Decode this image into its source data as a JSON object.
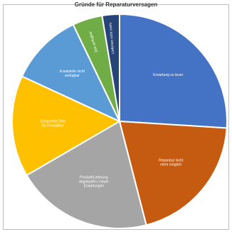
{
  "chart_data": {
    "type": "pie",
    "title": "Gründe für Reparaturversagen",
    "slices": [
      {
        "label": "Erwartung zu teuer",
        "value": 26.0,
        "color": "#4472c4"
      },
      {
        "label": "Reparatur nicht mehr möglich",
        "value": 20.0,
        "color": "#c55a11"
      },
      {
        "label": "Produkt/Lieferung abgelaufen / neuer Erwartungen",
        "value": 20.6,
        "color": "#a5a5a5"
      },
      {
        "label": "Ersatzteile/Teile für Produktion",
        "value": 15.3,
        "color": "#ffc000"
      },
      {
        "label": "Ersatzteile nicht verfügbar",
        "value": 11.0,
        "color": "#5b9bd5"
      },
      {
        "label": "Zeit verfügbar",
        "value": 4.5,
        "color": "#70ad47"
      },
      {
        "label": "Lieferant nicht mehr",
        "value": 2.6,
        "color": "#264478"
      }
    ],
    "start_angle_deg": 0,
    "legend": "none"
  }
}
